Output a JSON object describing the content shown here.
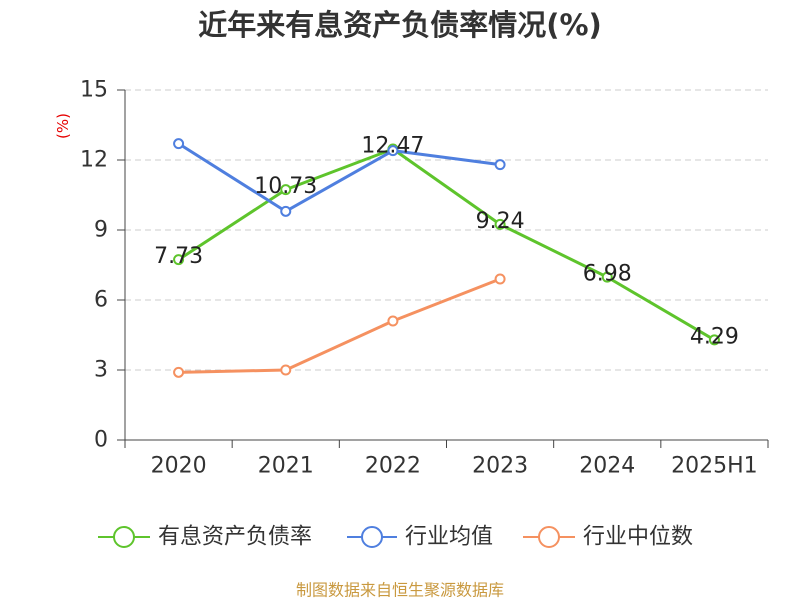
{
  "chart_data": {
    "type": "line",
    "title": "近年来有息资产负债率情况(%)",
    "xlabel": "",
    "ylabel": "(%)",
    "categories": [
      "2020",
      "2021",
      "2022",
      "2023",
      "2024",
      "2025H1"
    ],
    "ylim": [
      0,
      15
    ],
    "yticks": [
      0,
      3,
      6,
      9,
      12,
      15
    ],
    "grid": true,
    "legend_position": "bottom",
    "series": [
      {
        "name": "有息资产负债率",
        "color": "#5ec42c",
        "show_data_labels": true,
        "values": [
          7.73,
          10.73,
          12.47,
          9.24,
          6.98,
          4.29
        ]
      },
      {
        "name": "行业均值",
        "color": "#4f7fdf",
        "show_data_labels": false,
        "values": [
          12.7,
          9.8,
          12.4,
          11.8,
          null,
          null
        ]
      },
      {
        "name": "行业中位数",
        "color": "#f59160",
        "show_data_labels": false,
        "values": [
          2.9,
          3.0,
          5.1,
          6.9,
          null,
          null
        ]
      }
    ]
  },
  "source_note": "制图数据来自恒生聚源数据库",
  "colors": {
    "axis_label": "#e60000",
    "source_note": "#c9993f",
    "grid": "#cccccc",
    "axis": "#444444"
  }
}
